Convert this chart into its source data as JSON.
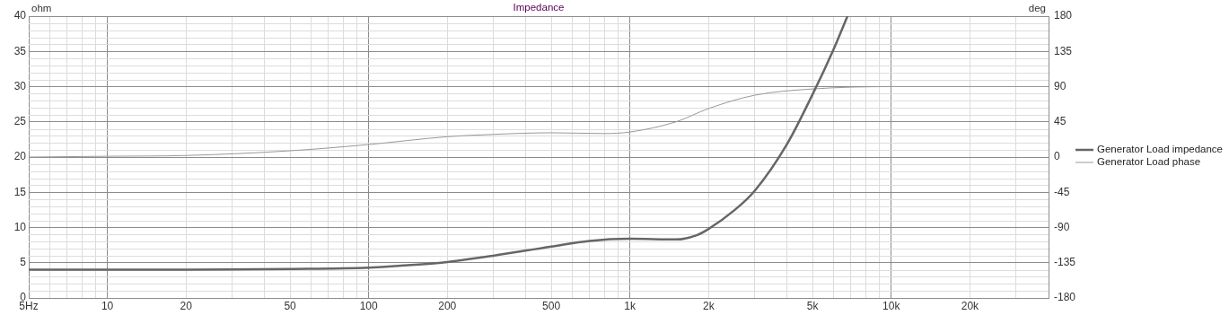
{
  "chart_data": {
    "type": "line",
    "title": "Impedance",
    "ylabel": "ohm",
    "y2label": "deg",
    "log": "x",
    "xlim": [
      5,
      40000
    ],
    "xticks": [
      {
        "value": 5,
        "label": "5Hz"
      },
      {
        "value": 6,
        "label": null
      },
      {
        "value": 7,
        "label": null
      },
      {
        "value": 8,
        "label": null
      },
      {
        "value": 9,
        "label": null
      },
      10,
      20,
      {
        "value": 30,
        "label": null
      },
      {
        "value": 40,
        "label": null
      },
      50,
      {
        "value": 60,
        "label": null
      },
      {
        "value": 70,
        "label": null
      },
      {
        "value": 80,
        "label": null
      },
      {
        "value": 90,
        "label": null
      },
      100,
      200,
      {
        "value": 300,
        "label": null
      },
      {
        "value": 400,
        "label": null
      },
      500,
      {
        "value": 600,
        "label": null
      },
      {
        "value": 700,
        "label": null
      },
      {
        "value": 800,
        "label": null
      },
      {
        "value": 900,
        "label": null
      },
      {
        "value": 1000,
        "label": "1k"
      },
      {
        "value": 2000,
        "label": "2k"
      },
      {
        "value": 3000,
        "label": null
      },
      {
        "value": 4000,
        "label": null
      },
      {
        "value": 5000,
        "label": "5k"
      },
      {
        "value": 6000,
        "label": null
      },
      {
        "value": 7000,
        "label": null
      },
      {
        "value": 8000,
        "label": null
      },
      {
        "value": 9000,
        "label": null
      },
      {
        "value": 10000,
        "label": "10k"
      },
      {
        "value": 20000,
        "label": "20k"
      },
      {
        "value": 30000,
        "label": null
      }
    ],
    "ylim": [
      0,
      40
    ],
    "yticks": [
      0,
      5,
      10,
      15,
      20,
      25,
      30,
      35,
      40
    ],
    "y2lim": [
      -180,
      180
    ],
    "y2ticks": [
      -180,
      -135,
      -90,
      -45,
      0,
      45,
      90,
      135,
      180
    ],
    "grid": true,
    "legend": "right",
    "series": [
      {
        "name": "Generator Load impedance",
        "color": "#666666",
        "x": [
          5,
          10,
          20,
          50,
          100,
          150,
          200,
          300,
          500,
          700,
          1000,
          1500,
          1800,
          2000,
          2500,
          3000,
          4000,
          5000,
          6000,
          6800
        ],
        "values": [
          4,
          4,
          4,
          4.1,
          4.3,
          4.7,
          5.1,
          6,
          7.3,
          8.1,
          8.4,
          8.3,
          8.9,
          9.8,
          12.4,
          15.2,
          21.9,
          28.9,
          35.2,
          40
        ]
      },
      {
        "name": "Generator Load phase",
        "color": "#999999",
        "axis": "y2",
        "x": [
          5,
          10,
          20,
          50,
          100,
          200,
          300,
          500,
          800,
          1000,
          1500,
          2000,
          3000,
          5000,
          10000,
          40000
        ],
        "values": [
          0,
          1,
          2,
          8,
          16,
          26,
          29,
          31,
          30,
          32,
          45,
          62,
          79,
          87,
          90,
          90
        ]
      }
    ]
  }
}
